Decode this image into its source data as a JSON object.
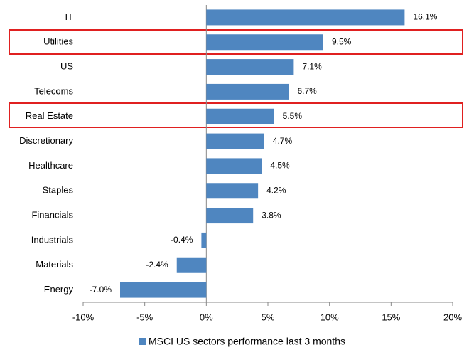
{
  "chart_data": {
    "type": "bar",
    "orientation": "horizontal",
    "categories": [
      "IT",
      "Utilities",
      "US",
      "Telecoms",
      "Real Estate",
      "Discretionary",
      "Healthcare",
      "Staples",
      "Financials",
      "Industrials",
      "Materials",
      "Energy"
    ],
    "series": [
      {
        "name": "MSCI US sectors performance last 3 months",
        "color": "#4f86c0",
        "values": [
          16.1,
          9.5,
          7.1,
          6.7,
          5.5,
          4.7,
          4.5,
          4.2,
          3.8,
          -0.4,
          -2.4,
          -7.0
        ],
        "value_labels": [
          "16.1%",
          "9.5%",
          "7.1%",
          "6.7%",
          "5.5%",
          "4.7%",
          "4.5%",
          "4.2%",
          "3.8%",
          "-0.4%",
          "-2.4%",
          "-7.0%"
        ]
      }
    ],
    "xlim": [
      -10,
      20
    ],
    "xticks": [
      {
        "value": -10,
        "label": "-10%"
      },
      {
        "value": -5,
        "label": "-5%"
      },
      {
        "value": 0,
        "label": "0%"
      },
      {
        "value": 5,
        "label": "5%"
      },
      {
        "value": 10,
        "label": "10%"
      },
      {
        "value": 15,
        "label": "15%"
      },
      {
        "value": 20,
        "label": "20%"
      }
    ],
    "legend": "bottom"
  }
}
